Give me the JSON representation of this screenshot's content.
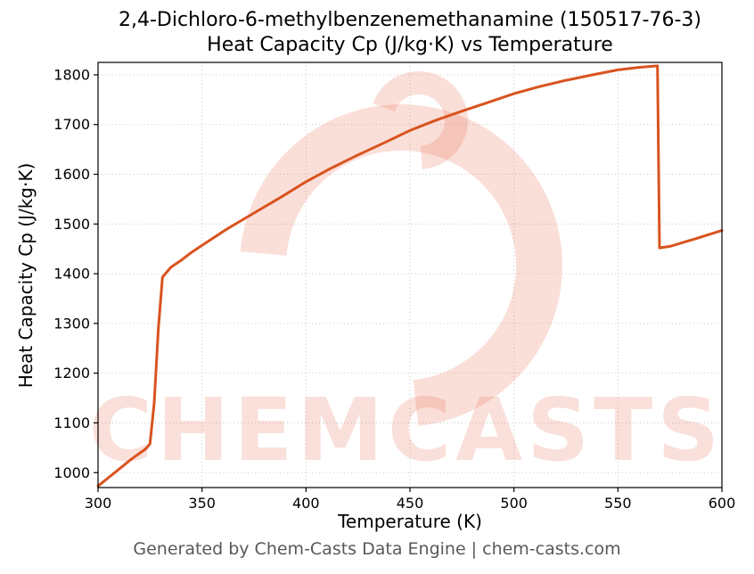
{
  "title_line1": "2,4-Dichloro-6-methylbenzenemethanamine (150517-76-3)",
  "title_line2": "Heat Capacity Cp (J/kg·K) vs Temperature",
  "footer": "Generated by Chem-Casts Data Engine | chem-casts.com",
  "watermark": {
    "text": "CHEMCASTS",
    "color": "rgba(231,101,72,0.20)"
  },
  "chart_data": {
    "type": "line",
    "title": "2,4-Dichloro-6-methylbenzenemethanamine (150517-76-3) Heat Capacity Cp (J/kg·K) vs Temperature",
    "xlabel": "Temperature (K)",
    "ylabel": "Heat Capacity Cp (J/kg·K)",
    "xlim": [
      300,
      600
    ],
    "ylim": [
      970,
      1825
    ],
    "x_ticks": [
      300,
      350,
      400,
      450,
      500,
      550,
      600
    ],
    "y_ticks": [
      1000,
      1100,
      1200,
      1300,
      1400,
      1500,
      1600,
      1700,
      1800
    ],
    "grid": true,
    "legend": "none",
    "line_color": "#d9531f",
    "series": [
      {
        "name": "Heat Capacity Cp",
        "x": [
          300,
          308,
          316,
          323,
          325,
          327,
          329,
          331,
          335,
          340,
          345,
          350,
          362,
          375,
          388,
          400,
          412,
          425,
          438,
          450,
          462,
          475,
          488,
          500,
          512,
          525,
          538,
          550,
          560,
          569,
          570,
          575,
          587,
          600
        ],
        "y": [
          973,
          1000,
          1027,
          1048,
          1058,
          1140,
          1290,
          1393,
          1413,
          1427,
          1443,
          1457,
          1490,
          1522,
          1554,
          1585,
          1612,
          1639,
          1664,
          1688,
          1708,
          1727,
          1745,
          1762,
          1776,
          1789,
          1800,
          1810,
          1815,
          1818,
          1452,
          1455,
          1470,
          1487
        ]
      }
    ]
  }
}
